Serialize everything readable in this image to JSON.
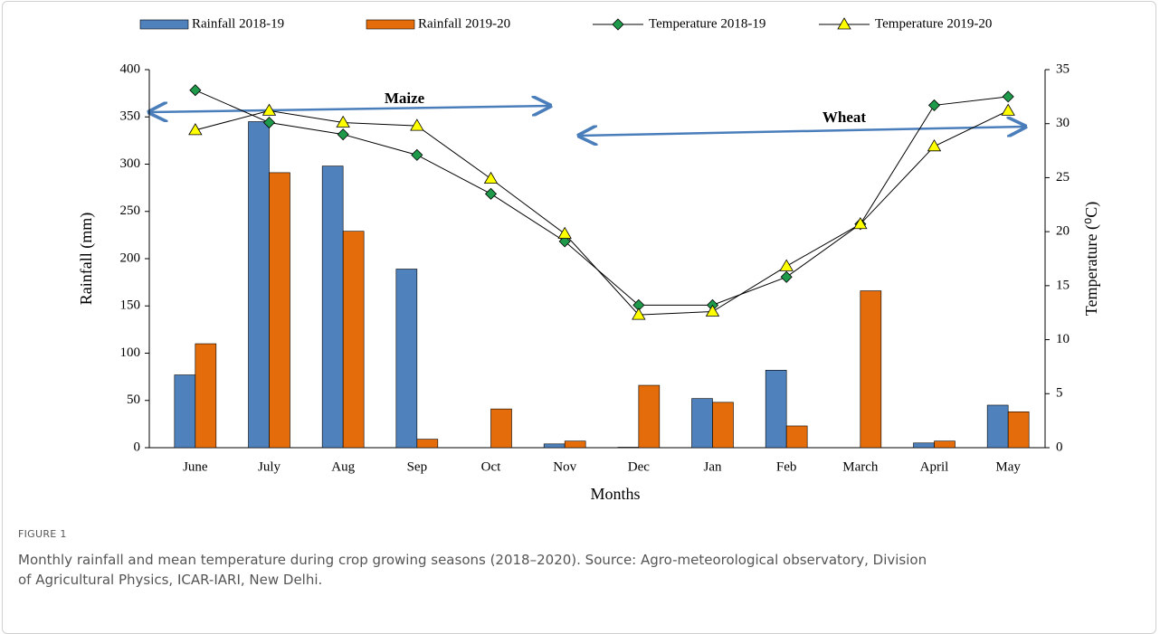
{
  "chart_data": {
    "type": "bar",
    "categories": [
      "June",
      "July",
      "Aug",
      "Sep",
      "Oct",
      "Nov",
      "Dec",
      "Jan",
      "Feb",
      "March",
      "April",
      "May"
    ],
    "series": [
      {
        "name": "Rainfall 2018-19",
        "type": "bar",
        "color": "#4f81bd",
        "values": [
          77,
          345,
          298,
          189,
          0,
          4,
          0.5,
          52,
          82,
          0,
          5,
          45
        ]
      },
      {
        "name": "Rainfall 2019-20",
        "type": "bar",
        "color": "#e46c0a",
        "values": [
          110,
          291,
          229,
          9,
          41,
          7,
          66,
          48,
          23,
          166,
          7,
          38
        ]
      },
      {
        "name": "Temperature 2018-19",
        "type": "line",
        "axis": "y2",
        "color": "#000000",
        "marker": "diamond",
        "marker_color": "#1e9a4a",
        "values": [
          33.1,
          30.1,
          29.0,
          27.1,
          23.5,
          19.1,
          13.2,
          13.2,
          15.8,
          20.7,
          31.7,
          32.5
        ]
      },
      {
        "name": "Temperature 2019-20",
        "type": "line",
        "axis": "y2",
        "color": "#000000",
        "marker": "triangle",
        "marker_color": "#ffff00",
        "values": [
          29.4,
          31.2,
          30.1,
          29.8,
          24.9,
          19.8,
          12.3,
          12.6,
          16.8,
          20.7,
          27.9,
          31.2
        ]
      }
    ],
    "xlabel": "Months",
    "ylabel": "Rainfall (mm)",
    "y2label": "Temperature (⁰C)",
    "ylim": [
      0,
      400
    ],
    "yticks": [
      0,
      50,
      100,
      150,
      200,
      250,
      300,
      350,
      400
    ],
    "y2lim": [
      0,
      35
    ],
    "y2ticks": [
      0,
      5,
      10,
      15,
      20,
      25,
      30,
      35
    ],
    "annotations": [
      "Maize",
      "Wheat"
    ],
    "legend": "top"
  },
  "figure": {
    "label": "FIGURE 1",
    "caption": "Monthly rainfall and mean temperature during crop growing seasons (2018–2020). Source: Agro-meteorological observatory, Division of Agricultural Physics, ICAR-IARI, New Delhi."
  }
}
